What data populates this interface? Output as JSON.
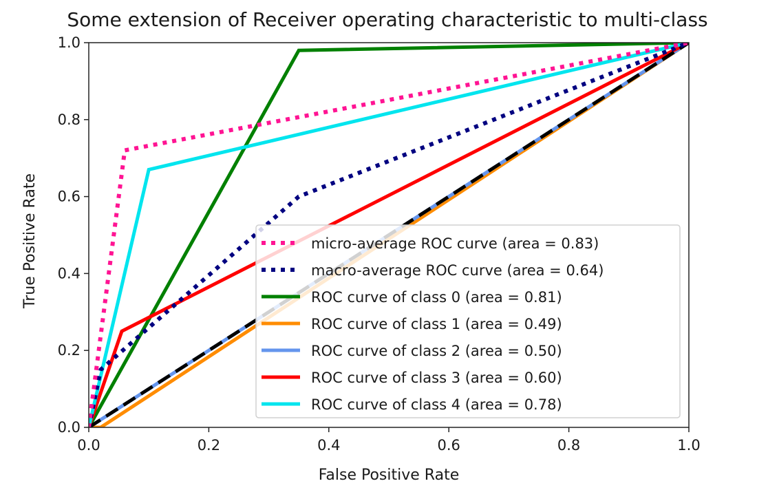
{
  "chart_data": {
    "type": "line",
    "title": "Some extension of Receiver operating characteristic to multi-class",
    "xlabel": "False Positive Rate",
    "ylabel": "True Positive Rate",
    "xlim": [
      0.0,
      1.0
    ],
    "ylim": [
      0.0,
      1.0
    ],
    "xticks": [
      "0.0",
      "0.2",
      "0.4",
      "0.6",
      "0.8",
      "1.0"
    ],
    "yticks": [
      "0.0",
      "0.2",
      "0.4",
      "0.6",
      "0.8",
      "1.0"
    ],
    "legend_position": "lower right",
    "grid": false,
    "series": [
      {
        "name": "micro-average ROC curve (area = 0.83)",
        "color": "#ff1493",
        "style": "dotted",
        "x": [
          0.0,
          0.06,
          1.0
        ],
        "y": [
          0.0,
          0.72,
          1.0
        ]
      },
      {
        "name": "macro-average ROC curve (area = 0.64)",
        "color": "#000080",
        "style": "dotted",
        "x": [
          0.0,
          0.02,
          0.35,
          1.0
        ],
        "y": [
          0.0,
          0.15,
          0.6,
          1.0
        ]
      },
      {
        "name": "ROC curve of class 0 (area = 0.81)",
        "color": "#008000",
        "style": "solid",
        "x": [
          0.0,
          0.35,
          1.0
        ],
        "y": [
          0.0,
          0.98,
          1.0
        ]
      },
      {
        "name": "ROC curve of class 1 (area = 0.49)",
        "color": "#ff8c00",
        "style": "solid",
        "x": [
          0.0,
          0.02,
          1.0
        ],
        "y": [
          0.0,
          0.0,
          1.0
        ]
      },
      {
        "name": "ROC curve of class 2 (area = 0.50)",
        "color": "#6495ed",
        "style": "solid",
        "x": [
          0.0,
          1.0
        ],
        "y": [
          0.0,
          1.0
        ]
      },
      {
        "name": "ROC curve of class 3 (area = 0.60)",
        "color": "#ff0000",
        "style": "solid",
        "x": [
          0.0,
          0.055,
          1.0
        ],
        "y": [
          0.0,
          0.25,
          1.0
        ]
      },
      {
        "name": "ROC curve of class 4 (area = 0.78)",
        "color": "#00e5ee",
        "style": "solid",
        "x": [
          0.0,
          0.1,
          1.0
        ],
        "y": [
          0.0,
          0.67,
          1.0
        ]
      }
    ],
    "reference_line": {
      "color": "#000000",
      "style": "dashed",
      "x": [
        0.0,
        1.0
      ],
      "y": [
        0.0,
        1.0
      ]
    }
  }
}
